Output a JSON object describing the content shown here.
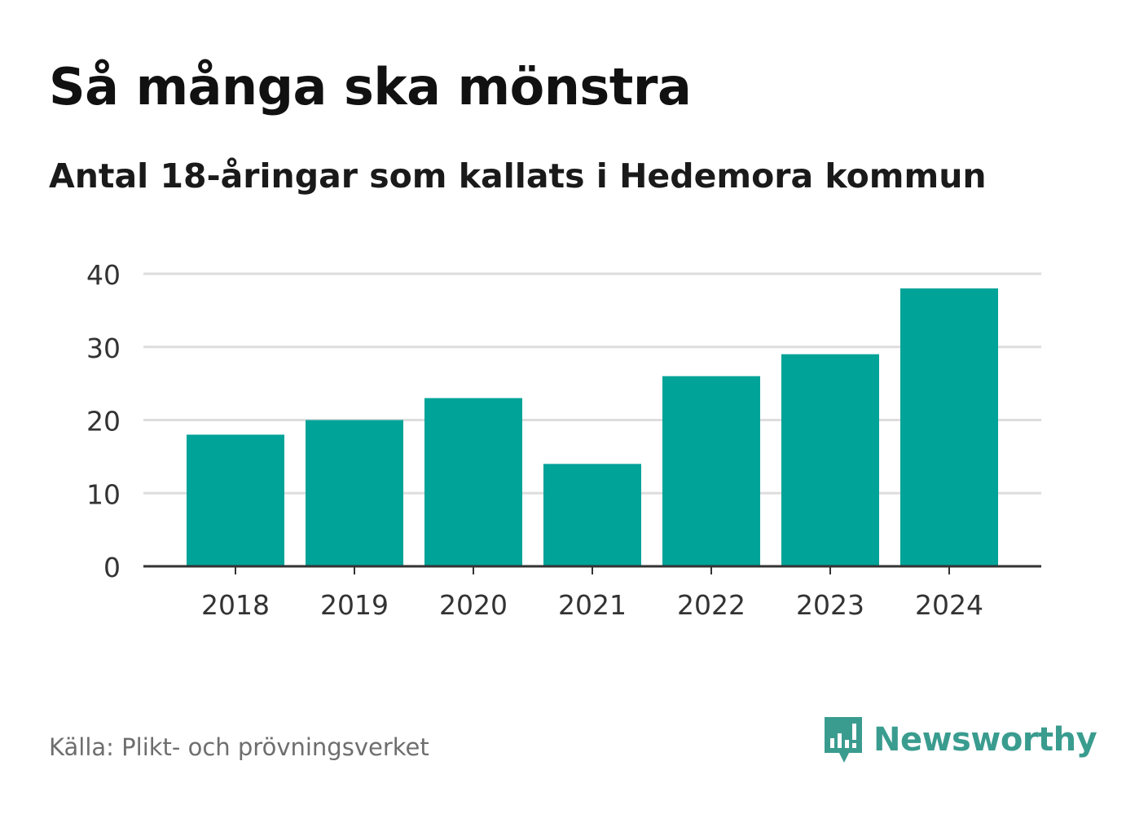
{
  "title": "Så många ska mönstra",
  "subtitle": "Antal 18-åringar som kallats i Hedemora kommun",
  "source": "Källa: Plikt- och prövningsverket",
  "brand": {
    "name": "Newsworthy",
    "icon": "newsworthy-logo-icon",
    "color": "#3a9c8f"
  },
  "colors": {
    "bar": "#00a398",
    "grid": "#dddddd",
    "axis": "#333333",
    "tick_text": "#333333"
  },
  "chart_data": {
    "type": "bar",
    "title": "Så många ska mönstra",
    "subtitle": "Antal 18-åringar som kallats i Hedemora kommun",
    "categories": [
      "2018",
      "2019",
      "2020",
      "2021",
      "2022",
      "2023",
      "2024"
    ],
    "values": [
      18,
      20,
      23,
      14,
      26,
      29,
      38
    ],
    "xlabel": "",
    "ylabel": "",
    "ylim": [
      0,
      40
    ],
    "yticks": [
      0,
      10,
      20,
      30,
      40
    ],
    "grid": true,
    "legend": "none"
  }
}
